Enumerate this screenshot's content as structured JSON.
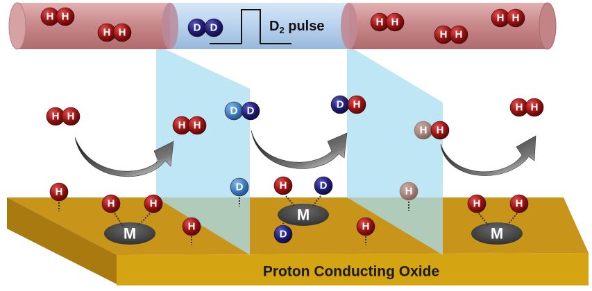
{
  "diagram": {
    "pulse_label": "D",
    "pulse_label_sub": "2",
    "pulse_label_rest": " pulse",
    "substrate_label": "Proton Conducting Oxide",
    "metal_label": "M",
    "atom_h_label": "H",
    "atom_d_label": "D"
  },
  "colors": {
    "tube_gas": "#c98a8c",
    "tube_pulse": "#b7d2ee",
    "h_atom": "#9b1414",
    "d_atom": "#1f1f7a",
    "d_light": "#3f80c4",
    "hd_faded": "#a98880",
    "substrate_top": "#c8951a",
    "substrate_front": "#d4a412",
    "metal": "#4a4a4a",
    "panel": "#a8ddf0"
  }
}
